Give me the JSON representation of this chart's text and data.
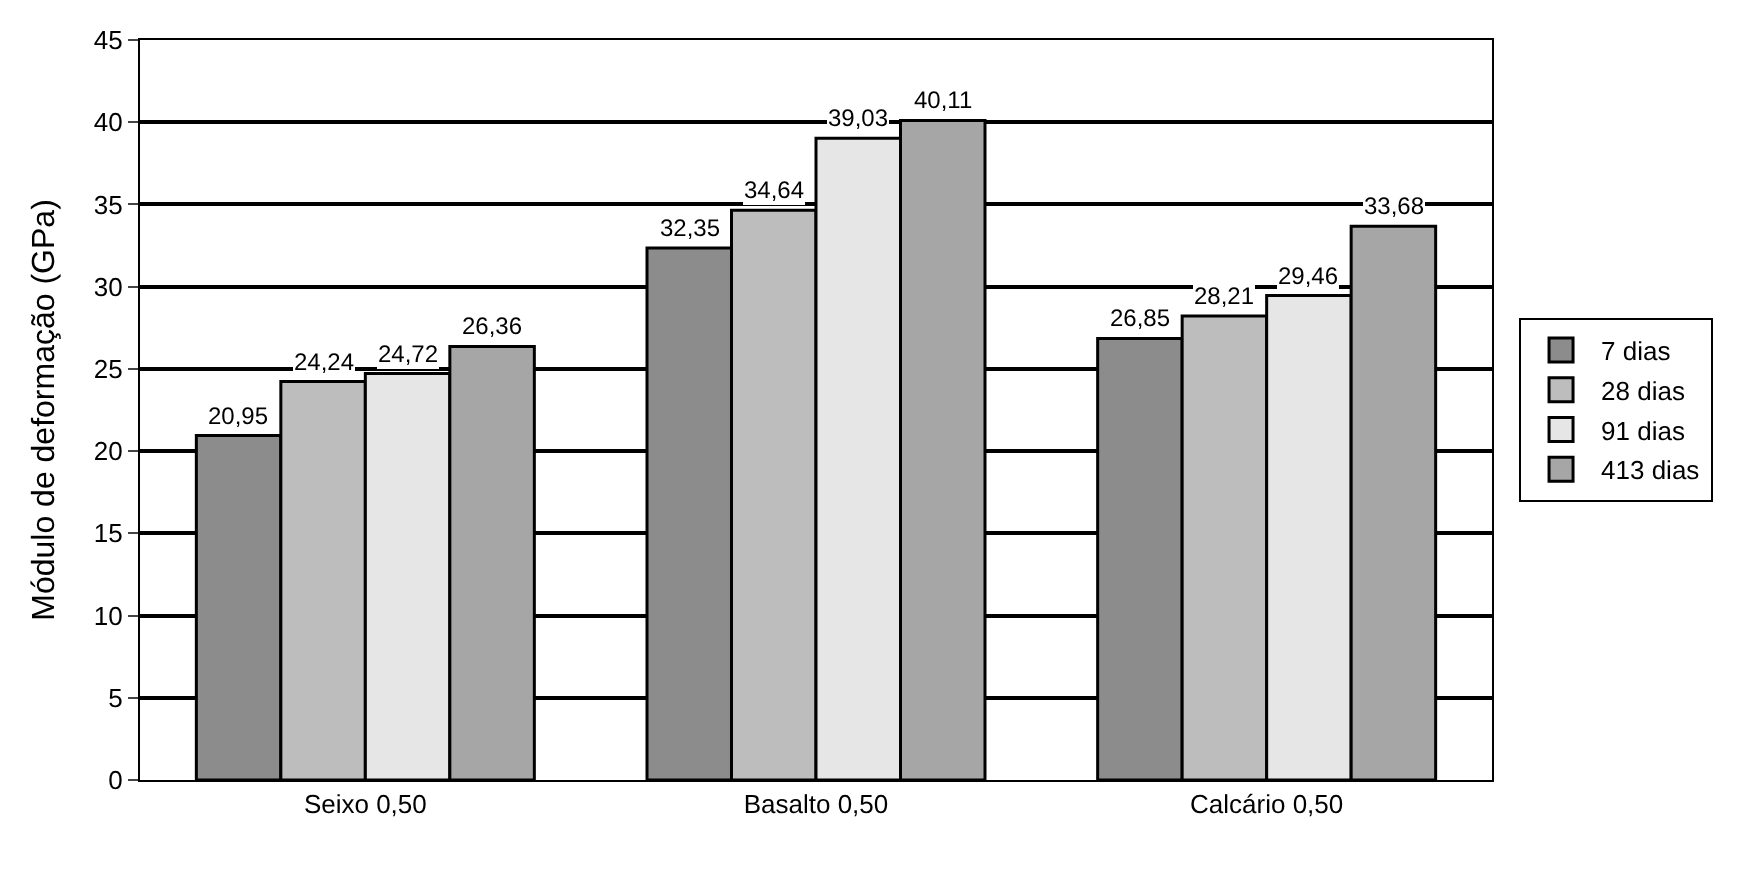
{
  "chart_data": {
    "type": "bar",
    "ylabel": "Módulo de deformação (GPa)",
    "categories": [
      "Seixo 0,50",
      "Basalto 0,50",
      "Calcário 0,50"
    ],
    "series": [
      {
        "name": "7 dias",
        "color": "#8c8c8c",
        "values": [
          20.95,
          32.35,
          26.85
        ],
        "value_labels": [
          "20,95",
          "32,35",
          "26,85"
        ]
      },
      {
        "name": "28 dias",
        "color": "#bdbdbd",
        "values": [
          24.24,
          34.64,
          28.21
        ],
        "value_labels": [
          "24,24",
          "34,64",
          "28,21"
        ]
      },
      {
        "name": "91 dias",
        "color": "#e6e6e6",
        "values": [
          24.72,
          39.03,
          29.46
        ],
        "value_labels": [
          "24,72",
          "39,03",
          "29,46"
        ]
      },
      {
        "name": "413 dias",
        "color": "#a6a6a6",
        "values": [
          26.36,
          40.11,
          33.68
        ],
        "value_labels": [
          "26,36",
          "40,11",
          "33,68"
        ]
      }
    ],
    "ylim": [
      0,
      45
    ],
    "yticks": [
      0,
      5,
      10,
      15,
      20,
      25,
      30,
      35,
      40,
      45
    ],
    "grid": "y",
    "legend": "right"
  }
}
